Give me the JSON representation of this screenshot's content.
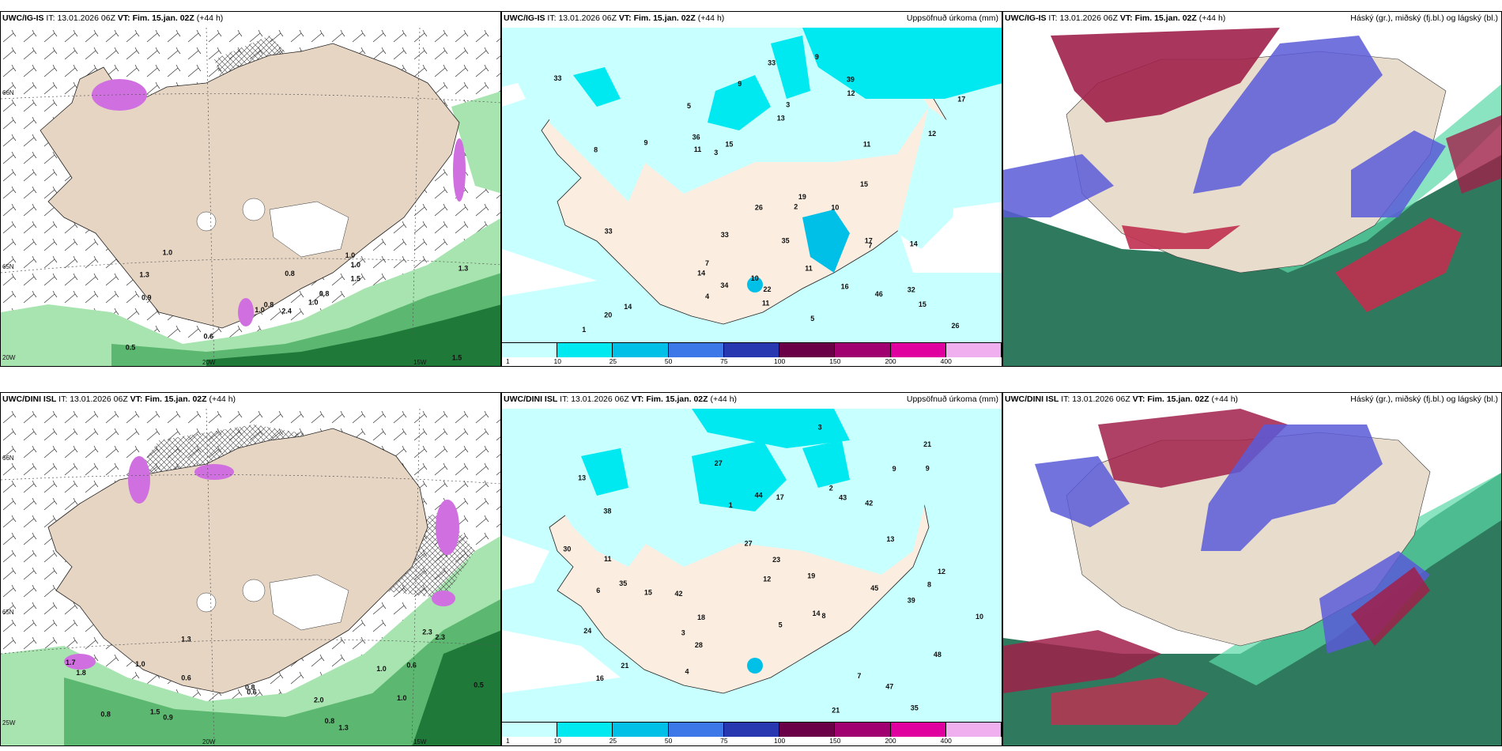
{
  "rows": [
    {
      "model": "UWC/IG-IS",
      "panels": [
        {
          "model": "UWC/IG-IS",
          "it_label": "IT:",
          "it": "13.01.2026 06Z",
          "vt_label": "VT:",
          "vt": "Fim. 15.jan. 02Z",
          "lead": "(+44 h)",
          "title": ""
        },
        {
          "model": "UWC/IG-IS",
          "it_label": "IT:",
          "it": "13.01.2026 06Z",
          "vt_label": "VT:",
          "vt": "Fim. 15.jan. 02Z",
          "lead": "(+44 h)",
          "title": "Uppsöfnuð úrkoma (mm)"
        },
        {
          "model": "UWC/IG-IS",
          "it_label": "IT:",
          "it": "13.01.2026 06Z",
          "vt_label": "VT:",
          "vt": "Fim. 15.jan. 02Z",
          "lead": "(+44 h)",
          "title": "Háský (gr.), miðský (fj.bl.) og lágský (bl.)"
        }
      ]
    },
    {
      "model": "UWC/DINI ISL",
      "panels": [
        {
          "model": "UWC/DINI ISL",
          "it_label": "IT:",
          "it": "13.01.2026 06Z",
          "vt_label": "VT:",
          "vt": "Fim. 15.jan. 02Z",
          "lead": "(+44 h)",
          "title": ""
        },
        {
          "model": "UWC/DINI ISL",
          "it_label": "IT:",
          "it": "13.01.2026 06Z",
          "vt_label": "VT:",
          "vt": "Fim. 15.jan. 02Z",
          "lead": "(+44 h)",
          "title": "Uppsöfnuð úrkoma (mm)"
        },
        {
          "model": "UWC/DINI ISL",
          "it_label": "IT:",
          "it": "13.01.2026 06Z",
          "vt_label": "VT:",
          "vt": "Fim. 15.jan. 02Z",
          "lead": "(+44 h)",
          "title": "Háský (gr.), miðský (fj.bl.) og lágský (bl.)"
        }
      ]
    }
  ],
  "coords": {
    "top": {
      "n66": "66N",
      "n65": "65N",
      "w20n": "20W",
      "w20": "20W",
      "w15": "15W"
    },
    "bottom": {
      "n66": "66N",
      "n65": "65N",
      "w25": "25W",
      "w20": "20W",
      "w15": "15W"
    }
  },
  "precip_legend": {
    "colors": [
      "#c8ffff",
      "#00e8f0",
      "#00c0e8",
      "#3c78e8",
      "#2838b0",
      "#6a0048",
      "#a00070",
      "#e000a0",
      "#f0b0f0"
    ],
    "labels": [
      "1",
      "10",
      "25",
      "50",
      "75",
      "100",
      "150",
      "200",
      "400"
    ]
  },
  "top_wind_labels": [
    "2.4",
    "1.3",
    "0.8",
    "0.5",
    "0.8",
    "0.6",
    "1.0",
    "0.8",
    "1.0",
    "1.0",
    "1.0",
    "1.5",
    "0.9",
    "1.3",
    "1.0",
    "1.5"
  ],
  "bottom_wind_labels": [
    "1.3",
    "1.3",
    "1.5",
    "1.0",
    "0.6",
    "0.8",
    "0.5",
    "0.6",
    "0.6",
    "0.9",
    "0.8",
    "1.7",
    "0.8",
    "2.0",
    "1.0",
    "2.3",
    "1.8",
    "2.3",
    "1.0"
  ],
  "top_precip_labels": [
    "20",
    "14",
    "19",
    "35",
    "9",
    "9",
    "32",
    "39",
    "46",
    "14",
    "26",
    "11",
    "34",
    "33",
    "16",
    "36",
    "17",
    "33",
    "26",
    "17",
    "33",
    "14",
    "11",
    "10",
    "7",
    "12",
    "15",
    "13",
    "12",
    "11",
    "15",
    "33",
    "3",
    "1",
    "2",
    "5",
    "22",
    "11",
    "8",
    "10",
    "9",
    "7",
    "5",
    "4",
    "15",
    "3"
  ],
  "bottom_precip_labels": [
    "35",
    "35",
    "14",
    "13",
    "48",
    "38",
    "21",
    "42",
    "42",
    "44",
    "43",
    "47",
    "28",
    "27",
    "19",
    "24",
    "45",
    "23",
    "30",
    "16",
    "21",
    "17",
    "13",
    "10",
    "12",
    "11",
    "15",
    "12",
    "27",
    "9",
    "8",
    "6",
    "3",
    "2",
    "1",
    "39",
    "8",
    "7",
    "9",
    "21",
    "18",
    "5",
    "4",
    "3"
  ],
  "colors": {
    "land": "#e6d5c3",
    "sea": "#ffffff",
    "precip_light": "#c8ffff",
    "green": "#7fd08f",
    "pink": "#d070e0",
    "cloud_red": "#b02848",
    "cloud_blue": "#5a5ad8",
    "cloud_green": "#2f8060"
  }
}
